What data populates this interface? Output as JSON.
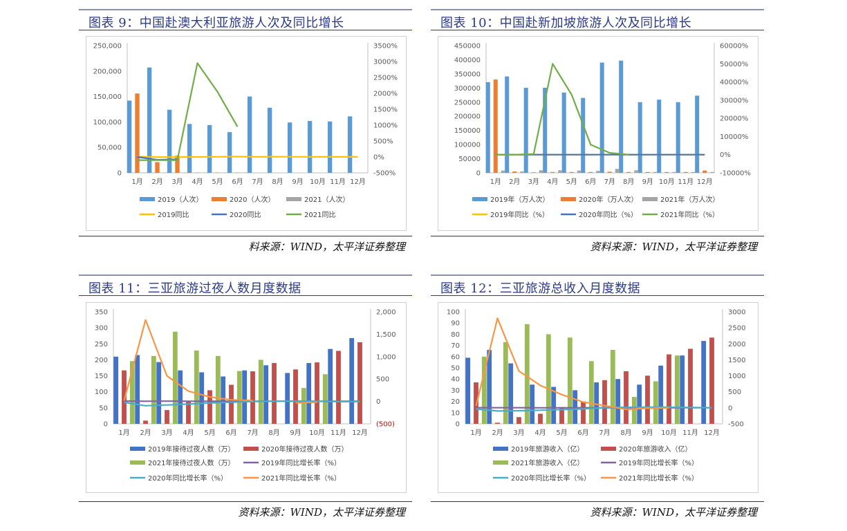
{
  "figures": [
    {
      "title": "图表 9：中国赴澳大利亚旅游人次及同比增长",
      "source": "料来源：WIND，太平洋证券整理"
    },
    {
      "title": "图表 10：中国赴新加坡旅游人次及同比增长",
      "source": "资料来源：WIND，太平洋证券整理"
    },
    {
      "title": "图表 11：三亚旅游过夜人数月度数据",
      "source": "资料来源：WIND，太平洋证券整理"
    },
    {
      "title": "图表 12：三亚旅游总收入月度数据",
      "source": "资料来源：WIND，太平洋证券整理"
    }
  ],
  "chart_data": [
    {
      "type": "bar",
      "title": "中国赴澳大利亚旅游人次及同比增长",
      "categories": [
        "1月",
        "2月",
        "3月",
        "4月",
        "5月",
        "6月",
        "7月",
        "8月",
        "9月",
        "10月",
        "11月",
        "12月"
      ],
      "left_axis": {
        "ylim": [
          0,
          250000
        ],
        "ticks": [
          "0",
          "50,000",
          "100,000",
          "150,000",
          "200,000",
          "250,000"
        ]
      },
      "right_axis": {
        "ylim": [
          -500,
          3500
        ],
        "ticks": [
          "-500%",
          "0%",
          "500%",
          "1000%",
          "1500%",
          "2000%",
          "2500%",
          "3000%",
          "3500%"
        ]
      },
      "bars": [
        {
          "name": "2019（人次）",
          "color": "#5b9bd5",
          "values": [
            142000,
            207000,
            124000,
            96000,
            94000,
            80000,
            150000,
            128000,
            99000,
            102000,
            101000,
            111000
          ]
        },
        {
          "name": "2020（人次）",
          "color": "#ed7d31",
          "values": [
            156000,
            21000,
            34000,
            300,
            400,
            500,
            null,
            null,
            null,
            null,
            null,
            null
          ]
        },
        {
          "name": "2021（人次）",
          "color": "#a5a5a5",
          "values": [
            500,
            300,
            400,
            300,
            500,
            600,
            null,
            null,
            null,
            null,
            null,
            null
          ]
        }
      ],
      "lines": [
        {
          "name": "2019同比",
          "color": "#ffc000",
          "values": [
            10,
            -5,
            -2,
            0,
            5,
            10,
            5,
            8,
            5,
            3,
            2,
            2
          ]
        },
        {
          "name": "2020同比",
          "color": "#4472c4",
          "values": [
            0,
            -90,
            -75,
            null,
            null,
            null,
            null,
            null,
            null,
            null,
            null,
            null
          ]
        },
        {
          "name": "2021同比",
          "color": "#70ad47",
          "values": [
            -100,
            -100,
            -100,
            2950,
            2050,
            950,
            null,
            null,
            null,
            null,
            null,
            null
          ]
        }
      ],
      "legend": [
        "2019（人次）",
        "2020（人次）",
        "2021（人次）",
        "2019同比",
        "2020同比",
        "2021同比"
      ]
    },
    {
      "type": "bar",
      "title": "中国赴新加坡旅游人次及同比增长",
      "categories": [
        "1月",
        "2月",
        "3月",
        "4月",
        "5月",
        "6月",
        "7月",
        "8月",
        "9月",
        "10月",
        "11月",
        "12月"
      ],
      "left_axis": {
        "ylim": [
          0,
          450000
        ],
        "ticks": [
          "0",
          "50000",
          "100000",
          "150000",
          "200000",
          "250000",
          "300000",
          "350000",
          "400000",
          "450000"
        ]
      },
      "right_axis": {
        "ylim": [
          -10000,
          60000
        ],
        "ticks": [
          "-10000%",
          "0%",
          "10000%",
          "20000%",
          "30000%",
          "40000%",
          "50000%",
          "60000%"
        ]
      },
      "bars": [
        {
          "name": "2019年（万人次）",
          "color": "#5b9bd5",
          "values": [
            321000,
            341000,
            301000,
            301000,
            284000,
            265000,
            390000,
            397000,
            250000,
            259000,
            250000,
            273000
          ]
        },
        {
          "name": "2020年（万人次）",
          "color": "#ed7d31",
          "values": [
            330000,
            5000,
            2000,
            3000,
            3000,
            3000,
            4000,
            3000,
            3000,
            3000,
            3000,
            8000
          ]
        },
        {
          "name": "2021年（万人次）",
          "color": "#a5a5a5",
          "values": [
            8000,
            5000,
            9000,
            9000,
            8000,
            7000,
            14000,
            9000,
            3000,
            3000,
            3000,
            3000
          ]
        }
      ],
      "lines": [
        {
          "name": "2019年同比（%）",
          "color": "#ffc000",
          "values": [
            0,
            0,
            0,
            0,
            0,
            0,
            0,
            0,
            0,
            0,
            0,
            0
          ]
        },
        {
          "name": "2020年同比（%）",
          "color": "#4472c4",
          "values": [
            0,
            0,
            0,
            0,
            0,
            0,
            0,
            0,
            0,
            0,
            0,
            0
          ]
        },
        {
          "name": "2021年同比（%）",
          "color": "#70ad47",
          "values": [
            0,
            0,
            300,
            50000,
            33000,
            5500,
            1000,
            0,
            null,
            null,
            null,
            null
          ]
        }
      ],
      "legend": [
        "2019年（万人次）",
        "2020年（万人次）",
        "2021年（万人次）",
        "2019年同比（%）",
        "2020年同比（%）",
        "2021年同比（%）"
      ]
    },
    {
      "type": "bar",
      "title": "三亚旅游过夜人数月度数据",
      "categories": [
        "1月",
        "2月",
        "3月",
        "4月",
        "5月",
        "6月",
        "7月",
        "8月",
        "9月",
        "10月",
        "11月",
        "12月"
      ],
      "left_axis": {
        "ylim": [
          0,
          350
        ],
        "ticks": [
          "0",
          "50",
          "100",
          "150",
          "200",
          "250",
          "300",
          "350"
        ]
      },
      "right_axis": {
        "ylim": [
          -500,
          2000
        ],
        "ticks": [
          "(500)",
          "0",
          "500",
          "1,000",
          "1,500",
          "2,000"
        ]
      },
      "bars": [
        {
          "name": "2019年接待过夜人数（万）",
          "color": "#4472c4",
          "values": [
            210,
            215,
            193,
            167,
            161,
            148,
            167,
            183,
            159,
            190,
            234,
            268
          ]
        },
        {
          "name": "2020年接待过夜人数（万）",
          "color": "#c0504d",
          "values": [
            167,
            10,
            43,
            70,
            105,
            122,
            164,
            190,
            170,
            192,
            228,
            255
          ]
        },
        {
          "name": "2021年接待过夜人数（万）",
          "color": "#9bbb59",
          "values": [
            196,
            212,
            288,
            229,
            212,
            165,
            200,
            null,
            112,
            155,
            null,
            null
          ]
        }
      ],
      "lines": [
        {
          "name": "2019年同比增长率（%）",
          "color": "#8064a2",
          "values": [
            8,
            5,
            6,
            4,
            3,
            3,
            4,
            5,
            4,
            3,
            4,
            3
          ]
        },
        {
          "name": "2020年同比增长率（%）",
          "color": "#4bacc6",
          "values": [
            -20,
            -95,
            -78,
            -58,
            -35,
            -18,
            -2,
            4,
            7,
            1,
            -3,
            -5
          ]
        },
        {
          "name": "2021年同比增长率（%）",
          "color": "#f79646",
          "values": [
            17,
            1820,
            570,
            230,
            100,
            35,
            22,
            null,
            -34,
            -19,
            null,
            null
          ]
        }
      ],
      "legend": [
        "2019年接待过夜人数（万）",
        "2020年接待过夜人数（万）",
        "2021年接待过夜人数（万）",
        "2019年同比增长率（%）",
        "2020年同比增长率（%）",
        "2021年同比增长率（%）"
      ]
    },
    {
      "type": "bar",
      "title": "三亚旅游总收入月度数据",
      "categories": [
        "1月",
        "2月",
        "3月",
        "4月",
        "5月",
        "6月",
        "7月",
        "8月",
        "9月",
        "10月",
        "11月",
        "12月"
      ],
      "left_axis": {
        "ylim": [
          0,
          100
        ],
        "ticks": [
          "0",
          "10",
          "20",
          "30",
          "40",
          "50",
          "60",
          "70",
          "80",
          "90",
          "100"
        ]
      },
      "right_axis": {
        "ylim": [
          -500,
          3000
        ],
        "ticks": [
          "-500",
          "0",
          "500",
          "1000",
          "1500",
          "2000",
          "2500",
          "3000"
        ]
      },
      "bars": [
        {
          "name": "2019年旅游收入（亿）",
          "color": "#4472c4",
          "values": [
            59,
            66,
            54,
            35,
            33,
            30,
            37,
            40,
            35,
            52,
            61,
            74
          ]
        },
        {
          "name": "2020年旅游收入（亿）",
          "color": "#c0504d",
          "values": [
            37,
            1,
            6,
            9,
            15,
            20,
            39,
            47,
            43,
            62,
            67,
            77
          ]
        },
        {
          "name": "2021年旅游收入（亿）",
          "color": "#9bbb59",
          "values": [
            60,
            73,
            89,
            80,
            77,
            56,
            66,
            24,
            38,
            61,
            null,
            null
          ]
        }
      ],
      "lines": [
        {
          "name": "2019年同比增长率（%）",
          "color": "#8064a2",
          "values": [
            5,
            3,
            4,
            2,
            2,
            3,
            2,
            2,
            2,
            2,
            3,
            3
          ]
        },
        {
          "name": "2020年同比增长率（%）",
          "color": "#4bacc6",
          "values": [
            -35,
            -98,
            -89,
            -74,
            -55,
            -33,
            5,
            17,
            23,
            19,
            10,
            4
          ]
        },
        {
          "name": "2021年同比增长率（%）",
          "color": "#f79646",
          "values": [
            62,
            2800,
            1150,
            700,
            413,
            180,
            69,
            -49,
            -12,
            -2,
            null,
            null
          ]
        }
      ],
      "legend": [
        "2019年旅游收入（亿）",
        "2020年旅游收入（亿）",
        "2021年旅游收入（亿）",
        "2019年同比增长率（%）",
        "2020年同比增长率（%）",
        "2021年同比增长率（%）"
      ]
    }
  ]
}
